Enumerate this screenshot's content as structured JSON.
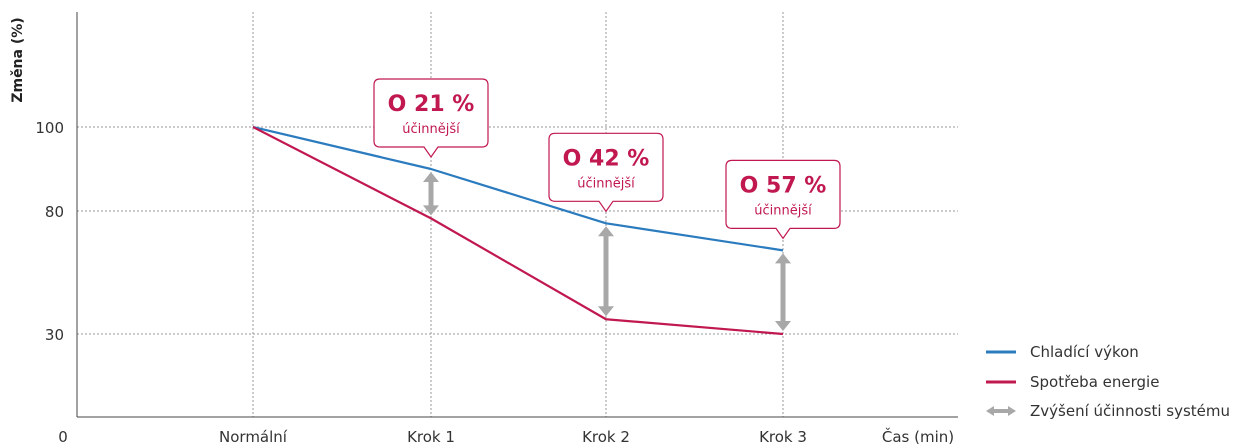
{
  "chart_data": {
    "type": "line",
    "ylabel": "Změna (%)",
    "xlabel": "Čas (min)",
    "origin_label": "0",
    "categories": [
      "Normální",
      "Krok 1",
      "Krok 2",
      "Krok 3"
    ],
    "y_ticks": [
      100,
      80,
      30
    ],
    "y_tick_labels": [
      "100",
      "80",
      "30"
    ],
    "grid": true,
    "series": [
      {
        "name": "Chladící výkon",
        "color": "#2b7bbf",
        "values": [
          100,
          90,
          75,
          64
        ]
      },
      {
        "name": "Spotřeba energie",
        "color": "#c0184f",
        "values": [
          100,
          77,
          36,
          30
        ]
      }
    ],
    "efficiency_arrow": {
      "name": "Zvýšení účinnosti systému",
      "color": "#a8a8a8"
    },
    "annotations": [
      {
        "category": "Krok 1",
        "title": "O 21 %",
        "subtitle": "účinnější"
      },
      {
        "category": "Krok 2",
        "title": "O 42 %",
        "subtitle": "účinnější"
      },
      {
        "category": "Krok 3",
        "title": "O 57 %",
        "subtitle": "účinnější"
      }
    ],
    "accent_color": "#c0184f",
    "legend_position": "bottom-right"
  }
}
